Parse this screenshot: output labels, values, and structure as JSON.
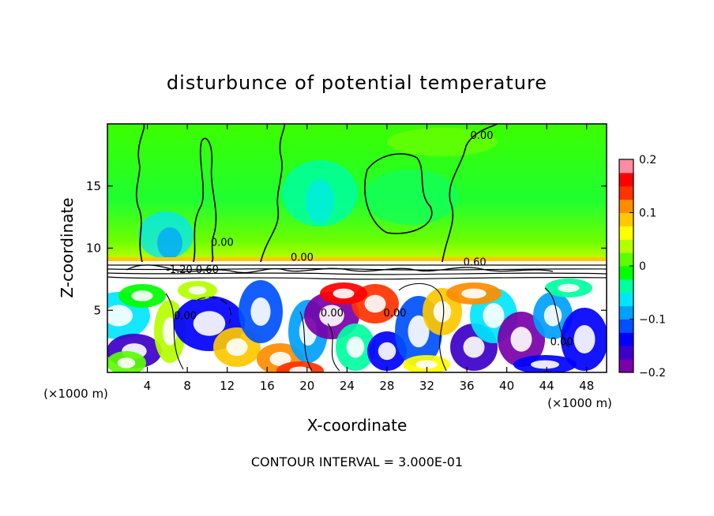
{
  "chart_data": {
    "type": "heatmap",
    "title": "disturbunce of potential temperature",
    "xlabel": "X-coordinate",
    "ylabel": "Z-coordinate",
    "x_unit": "(×1000 m)",
    "x_unit_right": "(×1000 m)",
    "footer": "CONTOUR INTERVAL = 3.000E-01",
    "xlim": [
      0,
      50
    ],
    "ylim": [
      0,
      20
    ],
    "x_ticks": [
      4,
      8,
      12,
      16,
      20,
      24,
      28,
      32,
      36,
      40,
      44,
      48
    ],
    "x_tick_labels": [
      "4",
      "8",
      "12",
      "16",
      "20",
      "24",
      "28",
      "32",
      "36",
      "40",
      "44",
      "48"
    ],
    "y_ticks": [
      5,
      10,
      15
    ],
    "y_tick_labels": [
      "5",
      "10",
      "15"
    ],
    "colorbar": {
      "min": -0.2,
      "max": 0.2,
      "ticks": [
        0.2,
        0.1,
        0,
        -0.1,
        -0.2
      ],
      "tick_labels": [
        "0.2",
        "0.1",
        "0",
        "−0.1",
        "−0.2"
      ],
      "colors": [
        "#7a00a8",
        "#3c00c8",
        "#0000ff",
        "#0050ff",
        "#00a0ff",
        "#00e6ff",
        "#00ffa0",
        "#00ff00",
        "#5aff00",
        "#b4ff00",
        "#ffff00",
        "#ffc800",
        "#ff8c00",
        "#ff3200",
        "#ff0000",
        "#ff8ca0"
      ]
    },
    "fields": [
      {
        "region": "upper layer",
        "z_range": [
          9,
          20
        ],
        "value_range": [
          -0.08,
          0.06
        ],
        "dominant_value": 0.0
      },
      {
        "region": "inversion band",
        "z_range": [
          7.5,
          9
        ],
        "value_range": [
          -0.2,
          0.2
        ]
      },
      {
        "region": "lower turbulent layer",
        "z_range": [
          0,
          7.5
        ],
        "value_range": [
          -0.2,
          0.2
        ]
      }
    ],
    "contour_labels": [
      {
        "text": "0.00",
        "x": 11.5,
        "z": 10.2
      },
      {
        "text": "0.00",
        "x": 19.5,
        "z": 9.0
      },
      {
        "text": "0.00",
        "x": 37.5,
        "z": 18.8
      },
      {
        "text": "0.60",
        "x": 36.8,
        "z": 8.6
      },
      {
        "text": "-1.20",
        "x": 7.2,
        "z": 8.0
      },
      {
        "text": "0.60",
        "x": 10.0,
        "z": 8.0
      },
      {
        "text": "0.00",
        "x": 7.8,
        "z": 4.3
      },
      {
        "text": "0.00",
        "x": 22.5,
        "z": 4.5
      },
      {
        "text": "0.00",
        "x": 28.8,
        "z": 4.5
      },
      {
        "text": "0.00",
        "x": 45.5,
        "z": 2.2
      }
    ]
  }
}
